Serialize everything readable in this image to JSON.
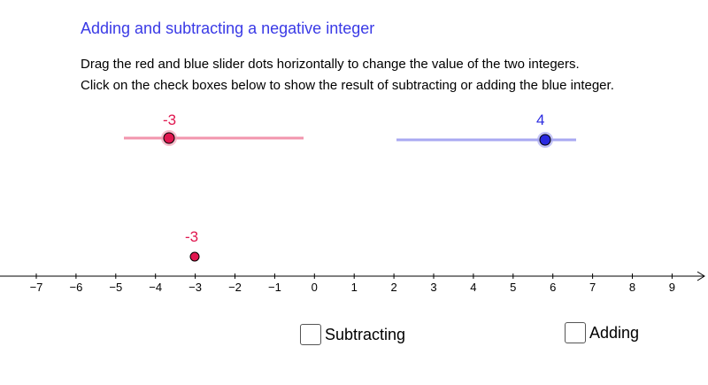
{
  "title": "Adding and subtracting a negative integer",
  "instructions": [
    "Drag the red and blue slider dots horizontally to change the value of the two integers.",
    "Click on the check boxes below to show the result of subtracting or adding the blue integer."
  ],
  "red_slider": {
    "value_label": "-3",
    "value": -3,
    "color": "#e0174f",
    "track_color": "#f295ad"
  },
  "blue_slider": {
    "value_label": "4",
    "value": 4,
    "color": "#2a2ae0",
    "track_color": "#a9a9f2"
  },
  "number_line": {
    "ticks": [
      "−7",
      "−6",
      "−5",
      "−4",
      "−3",
      "−2",
      "−1",
      "0",
      "1",
      "2",
      "3",
      "4",
      "5",
      "6",
      "7",
      "8",
      "9"
    ],
    "point_label": "-3",
    "point_value": -3
  },
  "checkboxes": {
    "subtracting": {
      "label": "Subtracting",
      "checked": false
    },
    "adding": {
      "label": "Adding",
      "checked": false
    }
  }
}
